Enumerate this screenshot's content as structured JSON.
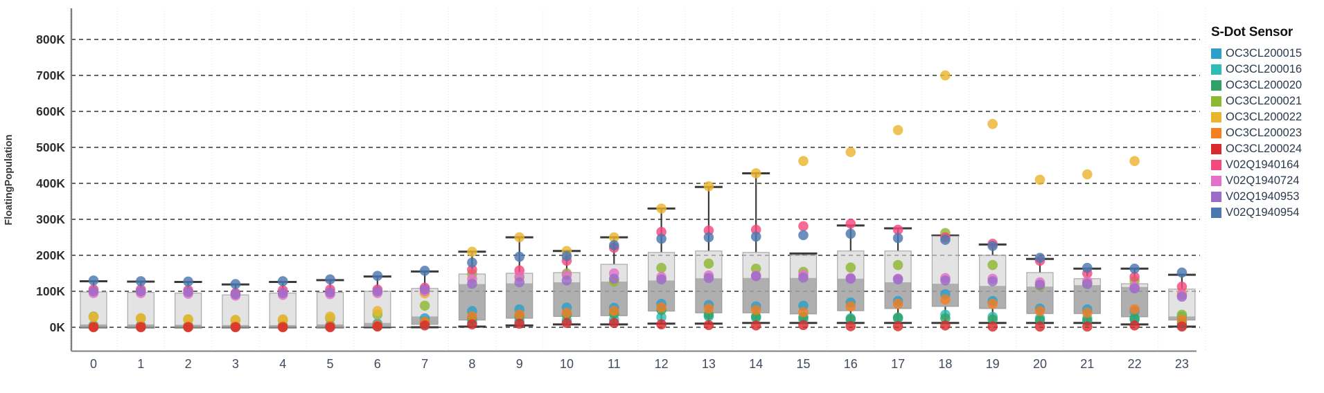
{
  "page": {
    "background": "#ffffff"
  },
  "chart": {
    "y_axis": {
      "title": "FloatingPopulation",
      "ticks": [
        "0K",
        "100K",
        "200K",
        "300K",
        "400K",
        "500K",
        "600K",
        "700K",
        "800K"
      ],
      "tick_values": [
        0,
        100,
        200,
        300,
        400,
        500,
        600,
        700,
        800
      ]
    },
    "x_axis": {
      "ticks": [
        "0",
        "1",
        "2",
        "3",
        "4",
        "5",
        "6",
        "7",
        "8",
        "9",
        "10",
        "11",
        "12",
        "13",
        "14",
        "15",
        "16",
        "17",
        "18",
        "19",
        "20",
        "21",
        "22",
        "23"
      ]
    },
    "legend": {
      "title": "S-Dot Sensor",
      "items": [
        {
          "label": "OC3CL200015",
          "color": "#2e9fc9"
        },
        {
          "label": "OC3CL200016",
          "color": "#2fbcb3"
        },
        {
          "label": "OC3CL200020",
          "color": "#2ea266"
        },
        {
          "label": "OC3CL200021",
          "color": "#8fb832"
        },
        {
          "label": "OC3CL200022",
          "color": "#eab52e"
        },
        {
          "label": "OC3CL200023",
          "color": "#f57e20"
        },
        {
          "label": "OC3CL200024",
          "color": "#d92b2e"
        },
        {
          "label": "V02Q1940164",
          "color": "#f4497e"
        },
        {
          "label": "V02Q1940724",
          "color": "#e470c8"
        },
        {
          "label": "V02Q1940953",
          "color": "#9b6dc8"
        },
        {
          "label": "V02Q1940954",
          "color": "#4c78b0"
        }
      ]
    }
  },
  "chart_data": {
    "type": "boxplot",
    "title": "",
    "xlabel": "",
    "ylabel": "FloatingPopulation",
    "y_unit": "K (thousands of people)",
    "ylim": [
      0,
      850
    ],
    "grid": "horizontal-dashed",
    "legend_position": "right",
    "x": [
      0,
      1,
      2,
      3,
      4,
      5,
      6,
      7,
      8,
      9,
      10,
      11,
      12,
      13,
      14,
      15,
      16,
      17,
      18,
      19,
      20,
      21,
      22,
      23
    ],
    "series": [
      {
        "name": "OC3CL200015",
        "color": "#2e9fc9",
        "values": [
          5,
          5,
          4,
          4,
          4,
          5,
          10,
          25,
          45,
          50,
          55,
          54,
          65,
          62,
          58,
          60,
          69,
          73,
          92,
          73,
          52,
          50,
          44,
          30
        ]
      },
      {
        "name": "OC3CL200016",
        "color": "#2fbcb3",
        "values": [
          2,
          2,
          2,
          2,
          2,
          3,
          4,
          8,
          15,
          18,
          20,
          22,
          28,
          30,
          26,
          22,
          25,
          25,
          35,
          29,
          25,
          25,
          21,
          5
        ]
      },
      {
        "name": "OC3CL200020",
        "color": "#2ea266",
        "values": [
          3,
          3,
          3,
          2,
          2,
          3,
          5,
          15,
          25,
          30,
          35,
          38,
          48,
          35,
          30,
          28,
          22,
          27,
          25,
          22,
          20,
          18,
          25,
          12
        ]
      },
      {
        "name": "OC3CL200021",
        "color": "#8fb832",
        "values": [
          30,
          25,
          22,
          20,
          20,
          25,
          35,
          60,
          148,
          140,
          150,
          127,
          165,
          177,
          163,
          154,
          166,
          173,
          262,
          173,
          115,
          123,
          129,
          35
        ]
      },
      {
        "name": "OC3CL200022",
        "color": "#eab52e",
        "values": [
          28,
          25,
          22,
          20,
          22,
          30,
          45,
          94,
          210,
          250,
          212,
          250,
          330,
          392,
          428,
          462,
          487,
          548,
          700,
          565,
          410,
          425,
          462,
          94
        ]
      },
      {
        "name": "OC3CL200023",
        "color": "#f57e20",
        "values": [
          2,
          2,
          2,
          2,
          2,
          3,
          5,
          15,
          30,
          35,
          40,
          45,
          55,
          52,
          48,
          42,
          58,
          65,
          77,
          65,
          45,
          40,
          50,
          20
        ]
      },
      {
        "name": "OC3CL200024",
        "color": "#d92b2e",
        "values": [
          0,
          0,
          0,
          0,
          0,
          0,
          2,
          5,
          8,
          10,
          12,
          12,
          8,
          6,
          5,
          6,
          3,
          3,
          5,
          2,
          2,
          2,
          5,
          2
        ]
      },
      {
        "name": "V02Q1940164",
        "color": "#f4497e",
        "values": [
          105,
          105,
          103,
          95,
          103,
          105,
          105,
          110,
          160,
          158,
          185,
          221,
          265,
          269,
          271,
          281,
          288,
          271,
          250,
          232,
          185,
          150,
          140,
          113
        ]
      },
      {
        "name": "V02Q1940724",
        "color": "#e470c8",
        "values": [
          95,
          95,
          93,
          88,
          90,
          92,
          95,
          100,
          134,
          140,
          145,
          150,
          140,
          144,
          144,
          146,
          137,
          135,
          137,
          135,
          125,
          128,
          113,
          90
        ]
      },
      {
        "name": "V02Q1940953",
        "color": "#9b6dc8",
        "values": [
          100,
          100,
          98,
          92,
          95,
          97,
          100,
          105,
          121,
          125,
          130,
          135,
          133,
          137,
          142,
          138,
          135,
          133,
          130,
          128,
          118,
          120,
          108,
          85
        ]
      },
      {
        "name": "V02Q1940954",
        "color": "#4c78b0",
        "values": [
          130,
          128,
          127,
          120,
          128,
          133,
          143,
          157,
          180,
          196,
          198,
          228,
          246,
          250,
          252,
          256,
          260,
          248,
          243,
          226,
          193,
          165,
          163,
          152
        ]
      }
    ],
    "boxes": [
      {
        "hour": 0,
        "q1": 0,
        "median": 8,
        "q3": 98,
        "whisker_low": 0,
        "whisker_high": 128
      },
      {
        "hour": 1,
        "q1": 0,
        "median": 8,
        "q3": 97,
        "whisker_low": 0,
        "whisker_high": 127
      },
      {
        "hour": 2,
        "q1": 0,
        "median": 7,
        "q3": 95,
        "whisker_low": 0,
        "whisker_high": 126
      },
      {
        "hour": 3,
        "q1": 0,
        "median": 6,
        "q3": 90,
        "whisker_low": 0,
        "whisker_high": 119
      },
      {
        "hour": 4,
        "q1": 0,
        "median": 6,
        "q3": 95,
        "whisker_low": 0,
        "whisker_high": 126
      },
      {
        "hour": 5,
        "q1": 0,
        "median": 8,
        "q3": 97,
        "whisker_low": 0,
        "whisker_high": 131
      },
      {
        "hour": 6,
        "q1": 2,
        "median": 12,
        "q3": 100,
        "whisker_low": 0,
        "whisker_high": 141
      },
      {
        "hour": 7,
        "q1": 8,
        "median": 30,
        "q3": 108,
        "whisker_low": 0,
        "whisker_high": 155
      },
      {
        "hour": 8,
        "q1": 20,
        "median": 120,
        "q3": 148,
        "whisker_low": 2,
        "whisker_high": 210
      },
      {
        "hour": 9,
        "q1": 25,
        "median": 122,
        "q3": 150,
        "whisker_low": 5,
        "whisker_high": 250
      },
      {
        "hour": 10,
        "q1": 30,
        "median": 125,
        "q3": 152,
        "whisker_low": 8,
        "whisker_high": 212
      },
      {
        "hour": 11,
        "q1": 32,
        "median": 127,
        "q3": 175,
        "whisker_low": 8,
        "whisker_high": 250
      },
      {
        "hour": 12,
        "q1": 45,
        "median": 130,
        "q3": 208,
        "whisker_low": 10,
        "whisker_high": 330
      },
      {
        "hour": 13,
        "q1": 40,
        "median": 136,
        "q3": 212,
        "whisker_low": 10,
        "whisker_high": 390
      },
      {
        "hour": 14,
        "q1": 40,
        "median": 137,
        "q3": 208,
        "whisker_low": 12,
        "whisker_high": 428
      },
      {
        "hour": 15,
        "q1": 37,
        "median": 137,
        "q3": 200,
        "whisker_low": 12,
        "whisker_high": 205
      },
      {
        "hour": 16,
        "q1": 46,
        "median": 135,
        "q3": 212,
        "whisker_low": 12,
        "whisker_high": 283
      },
      {
        "hour": 17,
        "q1": 52,
        "median": 125,
        "q3": 212,
        "whisker_low": 12,
        "whisker_high": 275
      },
      {
        "hour": 18,
        "q1": 58,
        "median": 121,
        "q3": 253,
        "whisker_low": 12,
        "whisker_high": 255
      },
      {
        "hour": 19,
        "q1": 52,
        "median": 115,
        "q3": 200,
        "whisker_low": 12,
        "whisker_high": 230
      },
      {
        "hour": 20,
        "q1": 38,
        "median": 113,
        "q3": 152,
        "whisker_low": 12,
        "whisker_high": 190
      },
      {
        "hour": 21,
        "q1": 38,
        "median": 117,
        "q3": 135,
        "whisker_low": 12,
        "whisker_high": 163
      },
      {
        "hour": 22,
        "q1": 29,
        "median": 112,
        "q3": 121,
        "whisker_low": 8,
        "whisker_high": 163
      },
      {
        "hour": 23,
        "q1": 20,
        "median": 30,
        "q3": 106,
        "whisker_low": 2,
        "whisker_high": 146
      }
    ]
  },
  "style": {
    "grid_color": "#4d4d4d",
    "minor_grid_color": "#eadfdf",
    "axis_line_color": "#7d7d7d",
    "box_fill": "#d2d2d2",
    "box_lower_fill": "#909090",
    "box_stroke": "#a8a8a8",
    "whisker_color": "#3a3a3a",
    "y_tick_color": "#2e2e2e",
    "x_tick_color": "#3e4a5e",
    "y_title_color": "#3a3a3a"
  }
}
